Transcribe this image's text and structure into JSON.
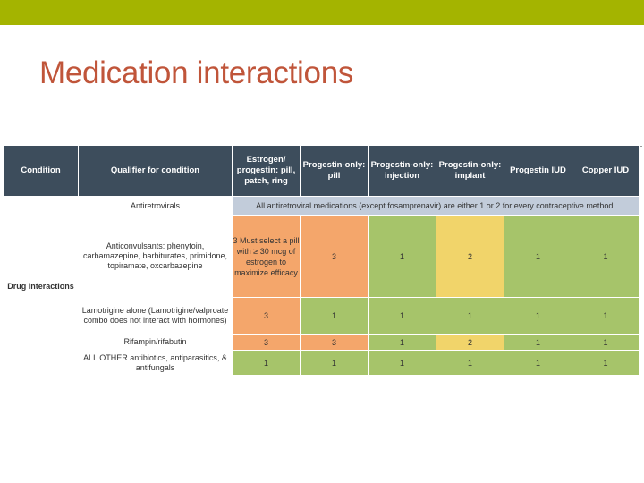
{
  "slide": {
    "title": "Medication interactions",
    "accent_color": "#a4b400",
    "title_color": "#c0553a"
  },
  "table": {
    "headers": {
      "condition": "Condition",
      "qualifier": "Qualifier for condition",
      "col1": "Estrogen/ progestin: pill, patch, ring",
      "col2": "Progestin-only: pill",
      "col3": "Progestin-only: injection",
      "col4": "Progestin-only: implant",
      "col5": "Progestin IUD",
      "col6": "Copper IUD"
    },
    "condition_label": "Drug interactions",
    "rows": [
      {
        "qualifier": "Antiretrovirals",
        "note": "All antiretroviral medications (except fosamprenavir) are either 1 or 2 for every contraceptive method."
      },
      {
        "qualifier": "Anticonvulsants: phenytoin, carbamazepine, barbiturates, primidone, topiramate, oxcarbazepine",
        "values": [
          "3 Must select a pill with ≥ 30 mcg of estrogen to maximize efficacy",
          "3",
          "1",
          "2",
          "1",
          "1"
        ]
      },
      {
        "qualifier": "Lamotrigine alone (Lamotrigine/valproate combo does not interact with hormones)",
        "values": [
          "3",
          "1",
          "1",
          "1",
          "1",
          "1"
        ]
      },
      {
        "qualifier": "Rifampin/rifabutin",
        "values": [
          "3",
          "3",
          "1",
          "2",
          "1",
          "1"
        ]
      },
      {
        "qualifier": "ALL OTHER antibiotics, antiparasitics, & antifungals",
        "values": [
          "1",
          "1",
          "1",
          "1",
          "1",
          "1"
        ]
      }
    ],
    "colors": {
      "category_1": "#a6c46a",
      "category_2": "#f1d46a",
      "category_3": "#f4a66b",
      "header": "#3d4d5c"
    }
  }
}
